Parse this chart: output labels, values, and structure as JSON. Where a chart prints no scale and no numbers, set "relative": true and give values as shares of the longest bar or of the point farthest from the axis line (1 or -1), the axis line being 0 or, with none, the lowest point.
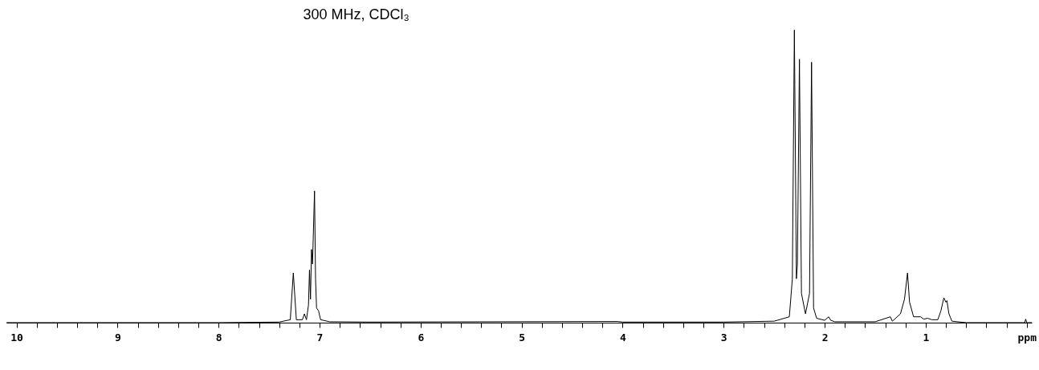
{
  "chart_data": {
    "type": "line",
    "title": "300 MHz, CDCl₃",
    "relative": true,
    "grid": false,
    "legend": false,
    "marker": "none",
    "line_style": "solid",
    "x": [
      10.1,
      8.0,
      7.4,
      7.29,
      7.26,
      7.23,
      7.17,
      7.15,
      7.13,
      7.11,
      7.1,
      7.09,
      7.08,
      7.07,
      7.05,
      7.04,
      7.03,
      7.01,
      6.99,
      6.9,
      6.5,
      4.05,
      4.0,
      3.0,
      2.5,
      2.35,
      2.32,
      2.3,
      2.28,
      2.27,
      2.25,
      2.23,
      2.19,
      2.15,
      2.13,
      2.11,
      2.08,
      2.0,
      1.96,
      1.94,
      1.9,
      1.5,
      1.35,
      1.33,
      1.25,
      1.21,
      1.18,
      1.16,
      1.12,
      1.05,
      1.02,
      0.98,
      0.94,
      0.88,
      0.85,
      0.82,
      0.8,
      0.79,
      0.77,
      0.74,
      0.6,
      0.02,
      0.01,
      0.0,
      -0.05
    ],
    "series": [
      {
        "color": "#000000",
        "values": [
          0,
          0,
          0.002,
          0.01,
          0.17,
          0.01,
          0.01,
          0.03,
          0.01,
          0.06,
          0.18,
          0.08,
          0.25,
          0.2,
          0.45,
          0.15,
          0.05,
          0.04,
          0.01,
          0.003,
          0.002,
          0.004,
          0.002,
          0.002,
          0.005,
          0.02,
          0.15,
          1.0,
          0.15,
          0.2,
          0.9,
          0.1,
          0.03,
          0.1,
          0.89,
          0.05,
          0.015,
          0.008,
          0.02,
          0.008,
          0.003,
          0.003,
          0.02,
          0.005,
          0.03,
          0.08,
          0.17,
          0.07,
          0.02,
          0.02,
          0.012,
          0.015,
          0.01,
          0.01,
          0.04,
          0.085,
          0.07,
          0.075,
          0.03,
          0.005,
          0,
          0,
          0.012,
          0,
          0
        ]
      }
    ],
    "xlim": [
      10.1,
      -0.05
    ],
    "xticks": [
      10,
      {
        "value": 9.8,
        "label": null
      },
      {
        "value": 9.6,
        "label": null
      },
      {
        "value": 9.4,
        "label": null
      },
      {
        "value": 9.2,
        "label": null
      },
      9,
      {
        "value": 8.8,
        "label": null
      },
      {
        "value": 8.6,
        "label": null
      },
      {
        "value": 8.4,
        "label": null
      },
      {
        "value": 8.2,
        "label": null
      },
      8,
      {
        "value": 7.8,
        "label": null
      },
      {
        "value": 7.6,
        "label": null
      },
      {
        "value": 7.4,
        "label": null
      },
      {
        "value": 7.2,
        "label": null
      },
      7,
      {
        "value": 6.8,
        "label": null
      },
      {
        "value": 6.6,
        "label": null
      },
      {
        "value": 6.4,
        "label": null
      },
      {
        "value": 6.2,
        "label": null
      },
      6,
      {
        "value": 5.8,
        "label": null
      },
      {
        "value": 5.6,
        "label": null
      },
      {
        "value": 5.4,
        "label": null
      },
      {
        "value": 5.2,
        "label": null
      },
      5,
      {
        "value": 4.8,
        "label": null
      },
      {
        "value": 4.6,
        "label": null
      },
      {
        "value": 4.4,
        "label": null
      },
      {
        "value": 4.2,
        "label": null
      },
      4,
      {
        "value": 3.8,
        "label": null
      },
      {
        "value": 3.6,
        "label": null
      },
      {
        "value": 3.4,
        "label": null
      },
      {
        "value": 3.2,
        "label": null
      },
      3,
      {
        "value": 2.8,
        "label": null
      },
      {
        "value": 2.6,
        "label": null
      },
      {
        "value": 2.4,
        "label": null
      },
      {
        "value": 2.2,
        "label": null
      },
      2,
      {
        "value": 1.8,
        "label": null
      },
      {
        "value": 1.6,
        "label": null
      },
      {
        "value": 1.4,
        "label": null
      },
      {
        "value": 1.2,
        "label": null
      },
      1,
      {
        "value": 0.8,
        "label": null
      },
      {
        "value": 0.6,
        "label": null
      },
      {
        "value": 0.4,
        "label": null
      },
      {
        "value": 0.2,
        "label": null
      },
      {
        "value": 0,
        "label": "ppm"
      }
    ]
  }
}
